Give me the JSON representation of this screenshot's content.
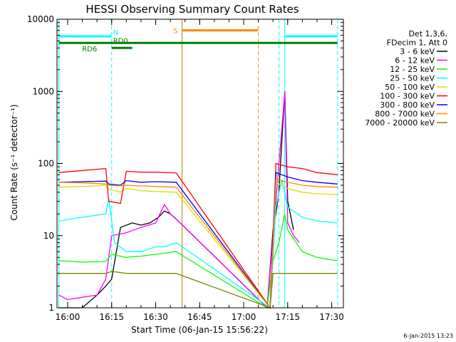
{
  "chart_data": {
    "type": "line",
    "title": "HESSI Observing Summary Count Rates",
    "xlabel": "Start Time (06-Jan-15 15:56:22)",
    "ylabel": "Count Rate (s⁻¹ detector⁻¹)",
    "yscale": "log",
    "ylim": [
      1,
      10000
    ],
    "xlim": [
      "15:56:22",
      "17:34:00"
    ],
    "x_ticks": [
      "16:00",
      "16:15",
      "16:30",
      "16:45",
      "17:00",
      "17:15",
      "17:30"
    ],
    "y_ticks": [
      "1",
      "10",
      "100",
      "1000",
      "10000"
    ],
    "legend_header": [
      "Det 1,3,6,",
      "FDecim 1, Att 0"
    ],
    "legend_position": "right",
    "timestamp": "6-Jan-2015 13:23",
    "series": [
      {
        "name": "3 - 6 keV",
        "color": "#000000",
        "x": [
          "15:57",
          "16:00",
          "16:05",
          "16:10",
          "16:13",
          "16:15",
          "16:18",
          "16:22",
          "16:25",
          "16:28",
          "16:31",
          "16:33",
          "16:35",
          "16:37",
          "17:08",
          "17:10",
          "17:11",
          "17:12",
          "17:13",
          "17:14",
          "17:15",
          "17:17"
        ],
        "values": [
          1,
          1,
          1,
          1.5,
          2,
          2.5,
          13,
          15,
          14,
          15,
          18,
          22,
          20,
          17,
          1,
          12,
          20,
          40,
          200,
          1000,
          30,
          12
        ]
      },
      {
        "name": "6 - 12 keV",
        "color": "#ff00ff",
        "x": [
          "15:57",
          "16:00",
          "16:05",
          "16:10",
          "16:13",
          "16:15",
          "16:20",
          "16:25",
          "16:30",
          "16:33",
          "16:35",
          "16:37",
          "17:08",
          "17:10",
          "17:11",
          "17:12",
          "17:13",
          "17:14",
          "17:15",
          "17:17",
          "17:19"
        ],
        "values": [
          1.5,
          1.3,
          1.4,
          1.5,
          2.5,
          10,
          11,
          13,
          15,
          27,
          20,
          17,
          1,
          10,
          30,
          100,
          300,
          1000,
          15,
          10,
          8
        ]
      },
      {
        "name": "12 - 25 keV",
        "color": "#00ff00",
        "x": [
          "15:57",
          "16:05",
          "16:13",
          "16:15",
          "16:20",
          "16:25",
          "16:30",
          "16:37",
          "17:08",
          "17:10",
          "17:12",
          "17:14",
          "17:15",
          "17:20",
          "17:25",
          "17:32"
        ],
        "values": [
          4.5,
          4.3,
          4.4,
          5.5,
          5.0,
          5.2,
          5.5,
          6.0,
          1,
          4.5,
          8,
          20,
          12,
          6,
          5,
          4.5
        ]
      },
      {
        "name": "25 - 50 keV",
        "color": "#00ffff",
        "x": [
          "15:57",
          "16:05",
          "16:13",
          "16:14",
          "16:16",
          "16:20",
          "16:25",
          "16:30",
          "16:33",
          "16:37",
          "17:09",
          "17:11",
          "17:13",
          "17:15",
          "17:20",
          "17:25",
          "17:32"
        ],
        "values": [
          16,
          18,
          20,
          33,
          8,
          6,
          6,
          7,
          7,
          8,
          1,
          25,
          60,
          25,
          18,
          16,
          15
        ]
      },
      {
        "name": "50 - 100 keV",
        "color": "#dddd00",
        "x": [
          "15:57",
          "16:05",
          "16:13",
          "16:14",
          "16:18",
          "16:20",
          "16:25",
          "16:30",
          "16:37",
          "17:09",
          "17:11",
          "17:15",
          "17:20",
          "17:25",
          "17:32"
        ],
        "values": [
          47,
          48,
          50,
          44,
          40,
          45,
          42,
          41,
          40,
          1,
          55,
          45,
          40,
          38,
          37
        ]
      },
      {
        "name": "100 - 300 keV",
        "color": "#ff0000",
        "x": [
          "15:57",
          "16:05",
          "16:13",
          "16:14",
          "16:18",
          "16:20",
          "16:25",
          "16:30",
          "16:37",
          "17:09",
          "17:11",
          "17:15",
          "17:20",
          "17:25",
          "17:32"
        ],
        "values": [
          75,
          80,
          85,
          30,
          28,
          78,
          76,
          76,
          74,
          1,
          100,
          90,
          85,
          75,
          70
        ]
      },
      {
        "name": "300 - 800 keV",
        "color": "#0000ff",
        "x": [
          "15:57",
          "16:05",
          "16:13",
          "16:14",
          "16:18",
          "16:20",
          "16:25",
          "16:30",
          "16:37",
          "17:09",
          "17:11",
          "17:15",
          "17:20",
          "17:25",
          "17:32"
        ],
        "values": [
          55,
          56,
          57,
          52,
          50,
          58,
          55,
          56,
          55,
          1,
          75,
          65,
          58,
          55,
          52
        ]
      },
      {
        "name": "800 - 7000 keV",
        "color": "#ff8800",
        "x": [
          "15:57",
          "16:05",
          "16:13",
          "16:14",
          "16:18",
          "16:20",
          "16:25",
          "16:30",
          "16:37",
          "17:09",
          "17:11",
          "17:15",
          "17:20",
          "17:25",
          "17:32"
        ],
        "values": [
          55,
          54,
          52,
          50,
          49,
          50,
          49,
          48,
          47,
          1,
          60,
          55,
          50,
          48,
          47
        ]
      },
      {
        "name": "7000 - 20000 keV",
        "color": "#808000",
        "x": [
          "15:57",
          "16:05",
          "16:13",
          "16:15",
          "16:20",
          "16:25",
          "16:30",
          "16:37",
          "17:09",
          "17:10",
          "17:15",
          "17:20",
          "17:25",
          "17:32"
        ],
        "values": [
          3,
          3,
          3,
          3.2,
          3,
          3,
          3,
          3,
          1,
          3,
          3,
          3,
          3,
          3
        ]
      }
    ],
    "segments": [
      {
        "label": "N",
        "color": "#00ffff",
        "start": "15:57",
        "end": "16:15",
        "level": 5800
      },
      {
        "label": "N",
        "color": "#00ffff",
        "start": "17:14",
        "end": "17:32",
        "level": 5800
      },
      {
        "label": "S",
        "color": "#ff8800",
        "start": "16:39",
        "end": "17:05",
        "level": 7000
      },
      {
        "label": "RD0",
        "color": "#008000",
        "start": "16:15",
        "end": "16:22",
        "level": 4000
      },
      {
        "label": "RD6",
        "color": "#008000",
        "start": "15:57",
        "end": "17:32",
        "level": 4700
      }
    ],
    "vlines": [
      {
        "time": "15:57",
        "color": "#00ffff",
        "style": "solid"
      },
      {
        "time": "16:15",
        "color": "#00ffff",
        "style": "dashed"
      },
      {
        "time": "16:39",
        "color": "#b8860b",
        "style": "solid"
      },
      {
        "time": "17:05",
        "color": "#ff8800",
        "style": "dashed"
      },
      {
        "time": "17:12",
        "color": "#00ffff",
        "style": "dashed"
      },
      {
        "time": "17:14",
        "color": "#00ffff",
        "style": "solid"
      },
      {
        "time": "17:32",
        "color": "#00ffff",
        "style": "dashed"
      }
    ]
  }
}
